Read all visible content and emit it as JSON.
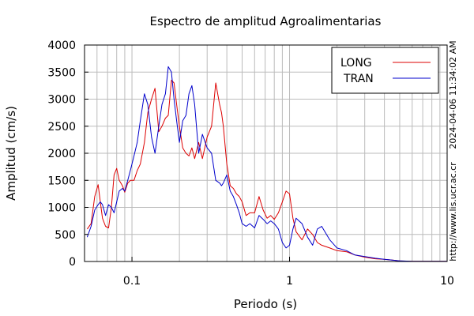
{
  "chart_data": {
    "type": "line",
    "title": "Espectro de amplitud Agroalimentarias",
    "xlabel": "Periodo (s)",
    "ylabel": "Amplitud (cm/s)",
    "x_scale": "log",
    "xlim": [
      0.05,
      10
    ],
    "ylim": [
      0,
      4000
    ],
    "grid": true,
    "legend_position": "top-right",
    "x_ticks": [
      {
        "value": 0.1,
        "label": "0.1"
      },
      {
        "value": 1,
        "label": "1"
      },
      {
        "value": 10,
        "label": "10"
      }
    ],
    "y_ticks": [
      0,
      500,
      1000,
      1500,
      2000,
      2500,
      3000,
      3500,
      4000
    ],
    "side_labels": {
      "timestamp": "2024-04-06 11:34:02 AM",
      "url": "http://www.lis.ucr.ac.cr"
    },
    "series": [
      {
        "name": "LONG",
        "color": "#dd0000",
        "x": [
          0.052,
          0.055,
          0.058,
          0.061,
          0.063,
          0.065,
          0.068,
          0.071,
          0.074,
          0.077,
          0.08,
          0.083,
          0.087,
          0.09,
          0.094,
          0.098,
          0.103,
          0.108,
          0.113,
          0.12,
          0.126,
          0.133,
          0.14,
          0.148,
          0.155,
          0.163,
          0.17,
          0.178,
          0.185,
          0.192,
          0.2,
          0.21,
          0.22,
          0.23,
          0.24,
          0.25,
          0.265,
          0.28,
          0.3,
          0.32,
          0.34,
          0.36,
          0.37,
          0.38,
          0.4,
          0.42,
          0.44,
          0.46,
          0.48,
          0.5,
          0.53,
          0.56,
          0.6,
          0.64,
          0.68,
          0.72,
          0.76,
          0.8,
          0.85,
          0.9,
          0.95,
          1.0,
          1.05,
          1.1,
          1.2,
          1.3,
          1.4,
          1.5,
          1.6,
          1.8,
          2.0,
          2.3,
          2.6,
          3.0,
          3.5,
          4.0,
          4.5,
          5.0,
          6.0,
          8.0,
          10.0
        ],
        "values": [
          600,
          700,
          1200,
          1420,
          1100,
          800,
          650,
          620,
          1000,
          1600,
          1720,
          1500,
          1400,
          1280,
          1450,
          1500,
          1500,
          1680,
          1800,
          2200,
          2750,
          3000,
          3200,
          2400,
          2500,
          2650,
          2700,
          3350,
          3300,
          2900,
          2500,
          2100,
          2000,
          1950,
          2100,
          1900,
          2200,
          1900,
          2300,
          2500,
          3300,
          2900,
          2750,
          2500,
          1800,
          1400,
          1350,
          1250,
          1200,
          1100,
          850,
          900,
          900,
          1200,
          950,
          800,
          850,
          780,
          900,
          1100,
          1300,
          1250,
          800,
          550,
          400,
          600,
          500,
          350,
          300,
          250,
          200,
          180,
          120,
          80,
          50,
          40,
          25,
          10,
          5,
          5,
          5
        ]
      },
      {
        "name": "TRAN",
        "color": "#0000cc",
        "x": [
          0.052,
          0.055,
          0.058,
          0.061,
          0.063,
          0.065,
          0.068,
          0.071,
          0.074,
          0.077,
          0.08,
          0.083,
          0.087,
          0.09,
          0.094,
          0.098,
          0.103,
          0.108,
          0.113,
          0.12,
          0.126,
          0.133,
          0.14,
          0.148,
          0.155,
          0.163,
          0.17,
          0.178,
          0.185,
          0.192,
          0.2,
          0.21,
          0.22,
          0.23,
          0.24,
          0.25,
          0.265,
          0.28,
          0.3,
          0.32,
          0.34,
          0.36,
          0.37,
          0.38,
          0.4,
          0.42,
          0.44,
          0.46,
          0.48,
          0.5,
          0.53,
          0.56,
          0.6,
          0.64,
          0.68,
          0.72,
          0.76,
          0.8,
          0.85,
          0.9,
          0.95,
          1.0,
          1.05,
          1.1,
          1.2,
          1.3,
          1.4,
          1.5,
          1.6,
          1.8,
          2.0,
          2.3,
          2.6,
          3.0,
          3.5,
          4.0,
          4.5,
          5.0,
          6.0,
          8.0,
          10.0
        ],
        "values": [
          450,
          650,
          950,
          1050,
          1100,
          1050,
          850,
          1050,
          1000,
          900,
          1100,
          1300,
          1350,
          1300,
          1500,
          1700,
          1950,
          2200,
          2600,
          3100,
          2900,
          2300,
          2000,
          2500,
          2900,
          3100,
          3600,
          3500,
          3000,
          2600,
          2200,
          2600,
          2700,
          3100,
          3250,
          2900,
          2000,
          2350,
          2100,
          2000,
          1500,
          1450,
          1400,
          1450,
          1600,
          1300,
          1200,
          1050,
          900,
          700,
          650,
          700,
          620,
          850,
          780,
          700,
          750,
          700,
          600,
          350,
          250,
          300,
          600,
          800,
          700,
          450,
          300,
          600,
          650,
          400,
          250,
          200,
          120,
          90,
          60,
          40,
          25,
          12,
          5,
          5,
          5
        ]
      }
    ]
  }
}
